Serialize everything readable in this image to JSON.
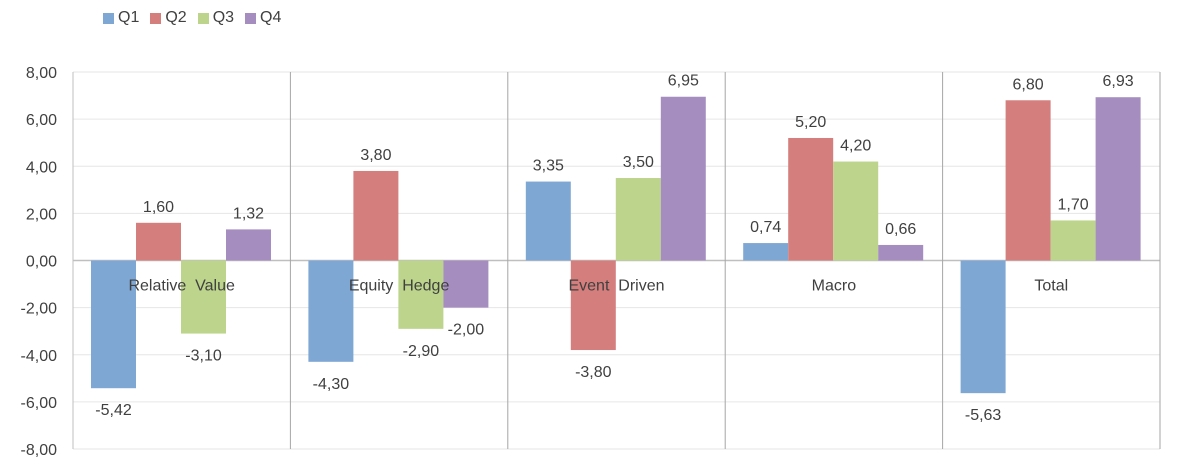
{
  "chart_data": {
    "type": "bar",
    "categories": [
      "Relative  Value",
      "Equity  Hedge",
      "Event  Driven",
      "Macro",
      "Total"
    ],
    "series": [
      {
        "name": "Q1",
        "color": "#7fa7d4",
        "values": [
          -5.42,
          -4.3,
          3.35,
          0.74,
          -5.63
        ],
        "labels": [
          "-5,42",
          "-4,30",
          "3,35",
          "0,74",
          "-5,63"
        ]
      },
      {
        "name": "Q2",
        "color": "#d47f7d",
        "values": [
          1.6,
          3.8,
          -3.8,
          5.2,
          6.8
        ],
        "labels": [
          "1,60",
          "3,80",
          "-3,80",
          "5,20",
          "6,80"
        ]
      },
      {
        "name": "Q3",
        "color": "#bcd48c",
        "values": [
          -3.1,
          -2.9,
          3.5,
          4.2,
          1.7
        ],
        "labels": [
          "-3,10",
          "-2,90",
          "3,50",
          "4,20",
          "1,70"
        ]
      },
      {
        "name": "Q4",
        "color": "#a68dc0",
        "values": [
          1.32,
          -2.0,
          6.95,
          0.66,
          6.93
        ],
        "labels": [
          "1,32",
          "-2,00",
          "6,95",
          "0,66",
          "6,93"
        ]
      }
    ],
    "ylim": [
      -8,
      8
    ],
    "yticks": [
      8,
      6,
      4,
      2,
      0,
      -2,
      -4,
      -6,
      -8
    ],
    "ytick_labels": [
      "8,00",
      "6,00",
      "4,00",
      "2,00",
      "0,00",
      "-2,00",
      "-4,00",
      "-6,00",
      "-8,00"
    ],
    "title": "",
    "xlabel": "",
    "ylabel": "",
    "grid": true,
    "legend_position": "top-left"
  }
}
